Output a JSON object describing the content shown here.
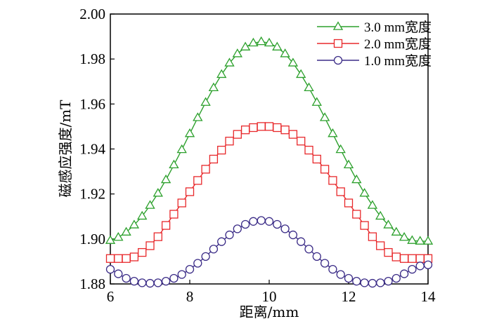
{
  "chart_data": {
    "type": "line",
    "title": "",
    "xlabel": "距离/mm",
    "ylabel": "磁感应强度/mT",
    "xlim": [
      6,
      14
    ],
    "ylim": [
      1.88,
      2.0
    ],
    "xticks": [
      "6",
      "8",
      "10",
      "12",
      "14"
    ],
    "yticks": [
      "1.88",
      "1.90",
      "1.92",
      "1.94",
      "1.96",
      "1.98",
      "2.00"
    ],
    "legend_position": "top-right",
    "grid": false,
    "x": [
      6.0,
      6.2,
      6.4,
      6.6,
      6.8,
      7.0,
      7.2,
      7.4,
      7.6,
      7.8,
      8.0,
      8.2,
      8.4,
      8.6,
      8.8,
      9.0,
      9.2,
      9.4,
      9.6,
      9.8,
      10.0,
      10.2,
      10.4,
      10.6,
      10.8,
      11.0,
      11.2,
      11.4,
      11.6,
      11.8,
      12.0,
      12.2,
      12.4,
      12.6,
      12.8,
      13.0,
      13.2,
      13.4,
      13.6,
      13.8,
      14.0
    ],
    "series": [
      {
        "name": "3.0 mm宽度",
        "marker": "triangle",
        "color": "#2ca02c",
        "values": [
          1.8993,
          1.9007,
          1.903,
          1.9062,
          1.9101,
          1.9149,
          1.9203,
          1.9263,
          1.9329,
          1.9397,
          1.9468,
          1.9539,
          1.9607,
          1.9672,
          1.9731,
          1.9782,
          1.9823,
          1.9853,
          1.9871,
          1.9877,
          1.9871,
          1.9853,
          1.9823,
          1.9782,
          1.9731,
          1.9672,
          1.9607,
          1.9539,
          1.9468,
          1.9397,
          1.9329,
          1.9263,
          1.9203,
          1.9149,
          1.9101,
          1.9062,
          1.903,
          1.9007,
          1.8993,
          1.899,
          1.899
        ]
      },
      {
        "name": "2.0 mm宽度",
        "marker": "square",
        "color": "#e8282b",
        "values": [
          1.8913,
          1.8913,
          1.8913,
          1.892,
          1.894,
          1.897,
          1.901,
          1.906,
          1.911,
          1.916,
          1.921,
          1.926,
          1.931,
          1.9355,
          1.9395,
          1.9435,
          1.9465,
          1.9485,
          1.9495,
          1.95,
          1.95,
          1.9495,
          1.9485,
          1.9465,
          1.9435,
          1.9395,
          1.9355,
          1.931,
          1.926,
          1.921,
          1.916,
          1.911,
          1.906,
          1.901,
          1.897,
          1.894,
          1.892,
          1.8913,
          1.8913,
          1.8913,
          1.8913
        ]
      },
      {
        "name": "1.0 mm宽度",
        "marker": "circle",
        "color": "#3b2c87",
        "values": [
          1.8865,
          1.8845,
          1.8825,
          1.8812,
          1.8805,
          1.8803,
          1.8805,
          1.8812,
          1.8825,
          1.8842,
          1.8865,
          1.8892,
          1.8922,
          1.8955,
          1.8988,
          1.9018,
          1.9045,
          1.9065,
          1.9078,
          1.9082,
          1.9078,
          1.9065,
          1.9045,
          1.9018,
          1.8988,
          1.8955,
          1.8922,
          1.8892,
          1.8865,
          1.8842,
          1.8825,
          1.8812,
          1.8805,
          1.8803,
          1.8805,
          1.8812,
          1.8825,
          1.8845,
          1.8865,
          1.888,
          1.8885
        ]
      }
    ]
  }
}
